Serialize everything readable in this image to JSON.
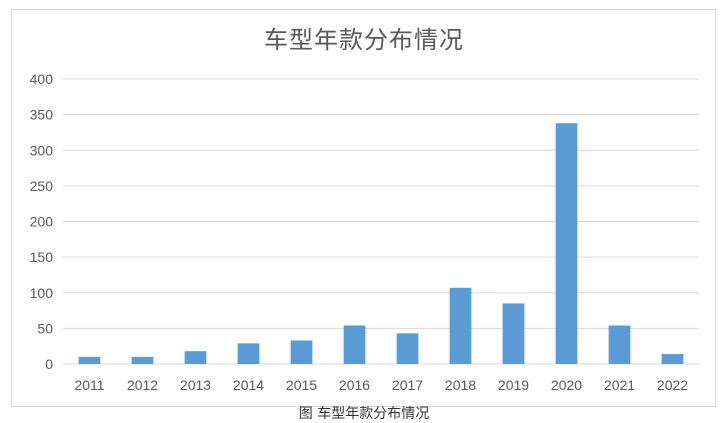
{
  "chart_data": {
    "type": "bar",
    "title": "车型年款分布情况",
    "categories": [
      "2011",
      "2012",
      "2013",
      "2014",
      "2015",
      "2016",
      "2017",
      "2018",
      "2019",
      "2020",
      "2021",
      "2022"
    ],
    "values": [
      10,
      10,
      18,
      29,
      33,
      54,
      43,
      107,
      85,
      338,
      54,
      14
    ],
    "ylim": [
      0,
      400
    ],
    "yticks": [
      0,
      50,
      100,
      150,
      200,
      250,
      300,
      350,
      400
    ],
    "grid": true,
    "legend": "none",
    "bar_color": "#5b9bd5",
    "grid_color": "#d9d9d9",
    "text_color": "#595959"
  },
  "caption": "图 车型年款分布情况"
}
